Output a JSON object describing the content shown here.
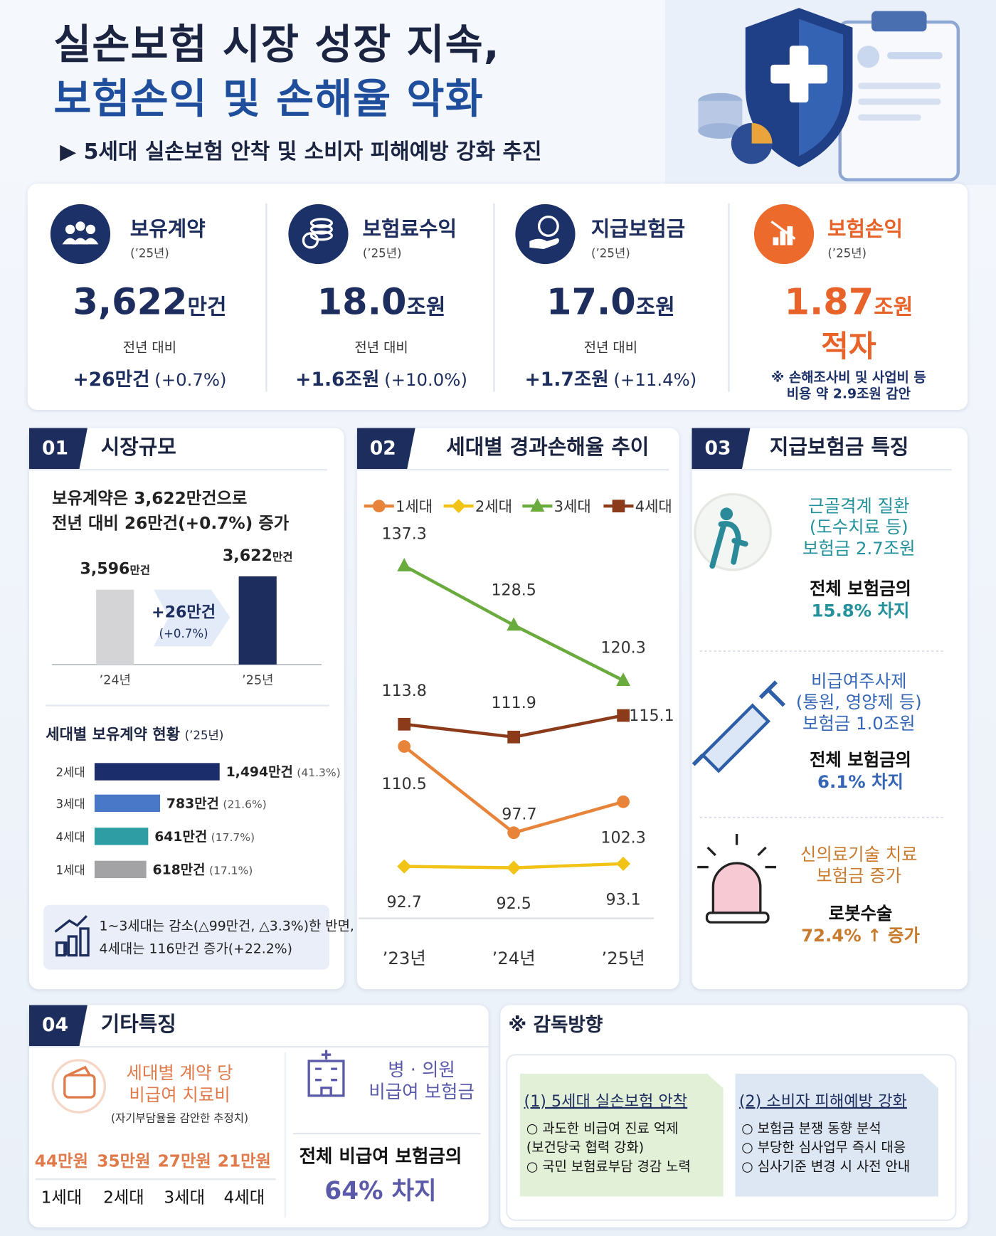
{
  "header": {
    "title_lines": [
      "실손보험 시장 성장 지속,",
      "보험손익 및 손해율 악화"
    ],
    "subtitle": "▶ 5세대 실손보험 안착 및 소비자 피해예방 강화 추진"
  },
  "kpis": [
    {
      "label": "보유계약",
      "period": "(’25년)",
      "value": "3,622",
      "unit": "만건",
      "compare_label": "전년 대비",
      "change": "+26만건",
      "change_pct": "(+0.7%)"
    },
    {
      "label": "보험료수익",
      "period": "(’25년)",
      "value": "18.0",
      "unit": "조원",
      "compare_label": "전년 대비",
      "change": "+1.6조원",
      "change_pct": "(+10.0%)"
    },
    {
      "label": "지급보험금",
      "period": "(’25년)",
      "value": "17.0",
      "unit": "조원",
      "compare_label": "전년 대비",
      "change": "+1.7조원",
      "change_pct": "(+11.4%)"
    },
    {
      "label": "보험손익",
      "period": "(’25년)",
      "value": "1.87",
      "unit": "조원",
      "status": "적자",
      "note_lines": [
        "※ 손해조사비 및 사업비 등",
        "비용 약 2.9조원 감안"
      ]
    }
  ],
  "section01": {
    "number": "01",
    "title": "시장규모",
    "summary_lines": [
      "보유계약은 3,622만건으로",
      "전년 대비 26만건(+0.7%) 증가"
    ],
    "note_lines": [
      "1~3세대는 감소(△99만건, △3.3%)한 반면,",
      "4세대는 116만건 증가(+22.2%)"
    ]
  },
  "chart_data": [
    {
      "type": "bar",
      "categories": [
        "’24년",
        "’25년"
      ],
      "values": [
        3596,
        3622
      ],
      "value_labels": [
        "3,596만건",
        "3,622만건"
      ],
      "colors": [
        "#d4d4d6",
        "#1c2d5e"
      ],
      "ylim": [
        3450,
        3650
      ],
      "annotation_lines": [
        "+26만건",
        "(+0.7%)"
      ]
    },
    {
      "type": "hbar",
      "title": "세대별 보유계약 현황",
      "subtitle": "(’25년)",
      "categories": [
        "2세대",
        "3세대",
        "4세대",
        "1세대"
      ],
      "values": [
        1494,
        783,
        641,
        618
      ],
      "value_labels": [
        "1,494만건",
        "783만건",
        "641만건",
        "618만건"
      ],
      "share_labels": [
        "(41.3%)",
        "(21.6%)",
        "(17.7%)",
        "(17.1%)"
      ],
      "colors": [
        "#1c2d6b",
        "#4a78c9",
        "#2f9ea4",
        "#a3a3a6"
      ],
      "xlim": [
        0,
        1600
      ]
    },
    {
      "type": "line",
      "number": "02",
      "title": "세대별 경과손해율 추이",
      "categories": [
        "’23년",
        "’24년",
        "’25년"
      ],
      "series": [
        {
          "name": "1세대",
          "color": "#e8843a",
          "marker": "circle",
          "values": [
            110.5,
            97.7,
            102.3
          ]
        },
        {
          "name": "2세대",
          "color": "#f1c317",
          "marker": "diamond",
          "values": [
            92.7,
            92.5,
            93.1
          ]
        },
        {
          "name": "3세대",
          "color": "#6aab3e",
          "marker": "triangle",
          "values": [
            137.3,
            128.5,
            120.3
          ]
        },
        {
          "name": "4세대",
          "color": "#8b3a1a",
          "marker": "square",
          "values": [
            113.8,
            111.9,
            115.1
          ]
        }
      ],
      "ylim": [
        85,
        145
      ]
    }
  ],
  "section03": {
    "number": "03",
    "title": "지급보험금 특징",
    "items": [
      {
        "highlight_lines": [
          "근골격계 질환",
          "(도수치료 등)",
          "보험금 2.7조원"
        ],
        "detail_lines": [
          "전체 보험금의",
          "15.8% 차지"
        ]
      },
      {
        "highlight_lines": [
          "비급여주사제",
          "(통원, 영양제 등)",
          "보험금 1.0조원"
        ],
        "detail_lines": [
          "전체 보험금의",
          "6.1% 차지"
        ]
      },
      {
        "highlight_lines": [
          "신의료기술 치료",
          "보험금 증가"
        ],
        "detail_lines": [
          "로봇수술",
          "72.4% ↑ 증가"
        ]
      }
    ]
  },
  "section04": {
    "number": "04",
    "title": "기타특징",
    "cost": {
      "title_lines": [
        "세대별 계약 당",
        "비급여 치료비"
      ],
      "note": "(자기부담율을 감안한 추정치)",
      "amounts": [
        "44만원",
        "35만원",
        "27만원",
        "21만원"
      ],
      "generations": [
        "1세대",
        "2세대",
        "3세대",
        "4세대"
      ]
    },
    "hospital": {
      "title_lines": [
        "병 · 의원",
        "비급여 보험금"
      ],
      "share_lines": [
        "전체 비급여 보험금의",
        "64% 차지"
      ]
    }
  },
  "supervision": {
    "title": "※ 감독방향",
    "boxes": [
      {
        "heading": "(1) 5세대 실손보험 안착",
        "items": [
          "○ 과도한 비급여 진료 억제",
          "(보건당국 협력 강화)",
          "○ 국민 보험료부담 경감 노력"
        ]
      },
      {
        "heading": "(2) 소비자 피해예방 강화",
        "items": [
          "○ 보험금 분쟁 동향 분석",
          "○ 부당한 심사업무 즉시 대응",
          "○ 심사기준 변경 시 사전 안내"
        ]
      }
    ]
  }
}
